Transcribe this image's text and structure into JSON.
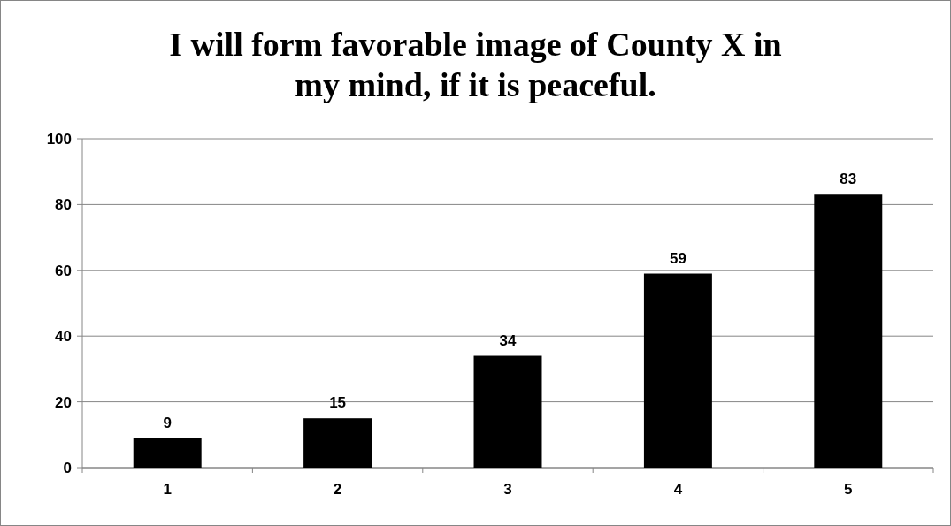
{
  "chart_data": {
    "type": "bar",
    "title": "I will form favorable image of County X in my mind, if it is peaceful.",
    "categories": [
      "1",
      "2",
      "3",
      "4",
      "5"
    ],
    "values": [
      9,
      15,
      34,
      59,
      83
    ],
    "color": "#000000",
    "ylim": [
      0,
      100
    ],
    "yticks": [
      0,
      20,
      40,
      60,
      80,
      100
    ],
    "grid": "y",
    "data_labels": true
  }
}
